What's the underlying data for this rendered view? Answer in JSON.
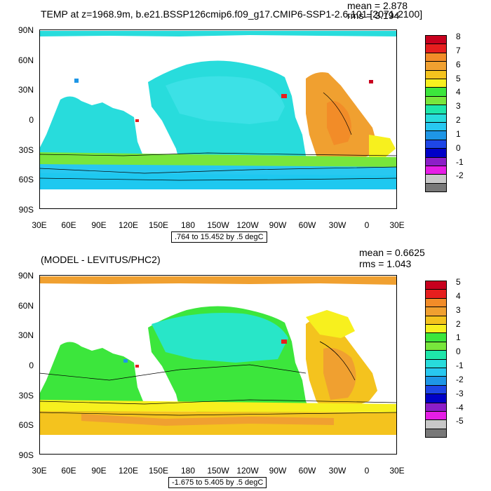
{
  "panels": [
    {
      "id": "top",
      "title": "TEMP at z=1968.9m, b.e21.BSSP126cmip6.f09_g17.CMIP6-SSP1-2.6.101 [2071-2100]",
      "mean": "mean = 2.878",
      "rms": "rms = 3.194",
      "range_label": ".764 to 15.452 by .5 degC",
      "colorbar": {
        "labels": [
          "8",
          "7",
          "6",
          "5",
          "4",
          "3",
          "2",
          "1",
          "0",
          "-1",
          "-2"
        ],
        "colors": [
          "#c8001e",
          "#e61e1e",
          "#f28c28",
          "#f0a030",
          "#f4c31e",
          "#f7f01e",
          "#3ce63c",
          "#78e63c",
          "#1ee6aa",
          "#28dcdc",
          "#28c8f0",
          "#1e96e6",
          "#1e46e6",
          "#0000c8",
          "#8c1ec8",
          "#e61ee6",
          "#c8c8c8",
          "#787878"
        ]
      }
    },
    {
      "id": "bottom",
      "title": "(MODEL - LEVITUS/PHC2)",
      "mean": "mean = 0.6625",
      "rms": "rms = 1.043",
      "range_label": "-1.675 to 5.405 by .5 degC",
      "colorbar": {
        "labels": [
          "5",
          "4",
          "3",
          "2",
          "1",
          "0",
          "-1",
          "-2",
          "-3",
          "-4",
          "-5"
        ],
        "colors": [
          "#c8001e",
          "#e61e1e",
          "#f28c28",
          "#f0a030",
          "#f4c31e",
          "#f7f01e",
          "#3ce63c",
          "#78e63c",
          "#1ee6aa",
          "#28dcdc",
          "#28c8f0",
          "#1e96e6",
          "#1e46e6",
          "#0000c8",
          "#8c1ec8",
          "#e61ee6",
          "#c8c8c8",
          "#787878"
        ]
      }
    }
  ],
  "lat_labels": [
    "90N",
    "60N",
    "30N",
    "0",
    "30S",
    "60S",
    "90S"
  ],
  "lon_labels": [
    "30E",
    "60E",
    "90E",
    "120E",
    "150E",
    "180",
    "150W",
    "120W",
    "90W",
    "60W",
    "30W",
    "0",
    "30E"
  ]
}
